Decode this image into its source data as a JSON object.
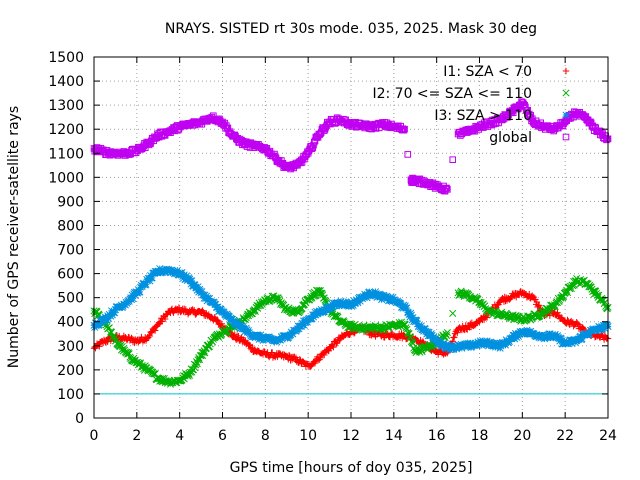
{
  "chart_data": {
    "type": "scatter",
    "title": "NRAYS. SISTED rt 30s mode. 035, 2025. Mask 30 deg",
    "xlabel": "GPS time [hours of doy 035, 2025]",
    "ylabel": "Number of GPS receiver-satellite rays",
    "xlim": [
      0,
      24
    ],
    "ylim": [
      0,
      1500
    ],
    "xticks": [
      0,
      2,
      4,
      6,
      8,
      10,
      12,
      14,
      16,
      18,
      20,
      22,
      24
    ],
    "yticks": [
      0,
      100,
      200,
      300,
      400,
      500,
      600,
      700,
      800,
      900,
      1000,
      1100,
      1200,
      1300,
      1400,
      1500
    ],
    "grid": true,
    "legend_position": "top-right",
    "threshold": {
      "y": 100,
      "color": "#00c8d8"
    },
    "series": [
      {
        "name": "I1: SZA < 70",
        "color": "#ff0000",
        "marker": "plus",
        "points": [
          [
            0,
            290
          ],
          [
            0.5,
            320
          ],
          [
            1,
            335
          ],
          [
            1.5,
            330
          ],
          [
            2,
            320
          ],
          [
            2.5,
            335
          ],
          [
            3,
            390
          ],
          [
            3.5,
            440
          ],
          [
            4,
            450
          ],
          [
            4.5,
            440
          ],
          [
            5,
            440
          ],
          [
            5.5,
            420
          ],
          [
            6,
            380
          ],
          [
            6.5,
            340
          ],
          [
            7,
            320
          ],
          [
            7.5,
            280
          ],
          [
            8,
            265
          ],
          [
            8.5,
            260
          ],
          [
            9,
            255
          ],
          [
            9.5,
            240
          ],
          [
            10,
            215
          ],
          [
            10.5,
            250
          ],
          [
            11,
            290
          ],
          [
            11.5,
            330
          ],
          [
            12,
            360
          ],
          [
            12.5,
            370
          ],
          [
            13,
            350
          ],
          [
            13.5,
            345
          ],
          [
            14,
            345
          ],
          [
            14.5,
            340
          ],
          [
            15,
            330
          ],
          [
            15.5,
            300
          ],
          [
            16,
            275
          ],
          [
            16.5,
            270
          ],
          [
            17,
            370
          ],
          [
            17.5,
            380
          ],
          [
            18,
            400
          ],
          [
            18.5,
            440
          ],
          [
            19,
            490
          ],
          [
            19.5,
            505
          ],
          [
            20,
            520
          ],
          [
            20.5,
            500
          ],
          [
            21,
            430
          ],
          [
            21.5,
            440
          ],
          [
            22,
            400
          ],
          [
            22.5,
            390
          ],
          [
            23,
            350
          ],
          [
            23.5,
            340
          ],
          [
            24,
            330
          ]
        ]
      },
      {
        "name": "I2: 70 <= SZA <= 110",
        "color": "#00b000",
        "marker": "cross",
        "points": [
          [
            0,
            445
          ],
          [
            0.5,
            400
          ],
          [
            1,
            320
          ],
          [
            1.5,
            270
          ],
          [
            2,
            230
          ],
          [
            2.5,
            200
          ],
          [
            3,
            165
          ],
          [
            3.5,
            150
          ],
          [
            4,
            155
          ],
          [
            4.5,
            190
          ],
          [
            5,
            260
          ],
          [
            5.5,
            320
          ],
          [
            6,
            360
          ],
          [
            6.5,
            380
          ],
          [
            7,
            410
          ],
          [
            7.5,
            450
          ],
          [
            8,
            490
          ],
          [
            8.5,
            500
          ],
          [
            9,
            450
          ],
          [
            9.5,
            440
          ],
          [
            10,
            495
          ],
          [
            10.5,
            530
          ],
          [
            11,
            450
          ],
          [
            11.5,
            400
          ],
          [
            12,
            380
          ],
          [
            12.5,
            375
          ],
          [
            13,
            375
          ],
          [
            13.5,
            375
          ],
          [
            14,
            385
          ],
          [
            14.5,
            390
          ],
          [
            15,
            280
          ],
          [
            15.5,
            290
          ],
          [
            16,
            310
          ],
          [
            16.5,
            355
          ],
          [
            17,
            520
          ],
          [
            17.5,
            510
          ],
          [
            18,
            480
          ],
          [
            18.5,
            440
          ],
          [
            19,
            430
          ],
          [
            19.5,
            420
          ],
          [
            20,
            410
          ],
          [
            20.5,
            420
          ],
          [
            21,
            440
          ],
          [
            21.5,
            470
          ],
          [
            22,
            520
          ],
          [
            22.5,
            570
          ],
          [
            23,
            560
          ],
          [
            23.5,
            510
          ],
          [
            24,
            460
          ]
        ]
      },
      {
        "name": "I3: SZA > 110",
        "color": "#0090e0",
        "marker": "star",
        "points": [
          [
            0,
            385
          ],
          [
            0.5,
            410
          ],
          [
            1,
            450
          ],
          [
            1.5,
            480
          ],
          [
            2,
            520
          ],
          [
            2.5,
            570
          ],
          [
            3,
            610
          ],
          [
            3.5,
            615
          ],
          [
            4,
            600
          ],
          [
            4.5,
            570
          ],
          [
            5,
            520
          ],
          [
            5.5,
            480
          ],
          [
            6,
            440
          ],
          [
            6.5,
            400
          ],
          [
            7,
            370
          ],
          [
            7.5,
            340
          ],
          [
            8,
            330
          ],
          [
            8.5,
            320
          ],
          [
            9,
            340
          ],
          [
            9.5,
            370
          ],
          [
            10,
            410
          ],
          [
            10.5,
            440
          ],
          [
            11,
            460
          ],
          [
            11.5,
            480
          ],
          [
            12,
            470
          ],
          [
            12.5,
            500
          ],
          [
            13,
            520
          ],
          [
            13.5,
            500
          ],
          [
            14,
            490
          ],
          [
            14.5,
            460
          ],
          [
            15,
            400
          ],
          [
            15.5,
            360
          ],
          [
            16,
            320
          ],
          [
            16.5,
            295
          ],
          [
            17,
            295
          ],
          [
            17.5,
            300
          ],
          [
            18,
            310
          ],
          [
            18.5,
            310
          ],
          [
            19,
            300
          ],
          [
            19.5,
            330
          ],
          [
            20,
            360
          ],
          [
            20.5,
            350
          ],
          [
            21,
            340
          ],
          [
            21.5,
            340
          ],
          [
            22,
            310
          ],
          [
            22.5,
            320
          ],
          [
            23,
            350
          ],
          [
            23.5,
            370
          ],
          [
            24,
            380
          ]
        ]
      },
      {
        "name": "global",
        "color": "#c000f0",
        "marker": "square",
        "points": [
          [
            0,
            1120
          ],
          [
            0.5,
            1105
          ],
          [
            1,
            1100
          ],
          [
            1.5,
            1100
          ],
          [
            2,
            1110
          ],
          [
            2.5,
            1140
          ],
          [
            3,
            1175
          ],
          [
            3.5,
            1190
          ],
          [
            4,
            1210
          ],
          [
            4.5,
            1220
          ],
          [
            5,
            1230
          ],
          [
            5.5,
            1250
          ],
          [
            6,
            1230
          ],
          [
            6.5,
            1170
          ],
          [
            7,
            1140
          ],
          [
            7.5,
            1130
          ],
          [
            8,
            1120
          ],
          [
            8.5,
            1080
          ],
          [
            9,
            1040
          ],
          [
            9.5,
            1050
          ],
          [
            10,
            1100
          ],
          [
            10.5,
            1180
          ],
          [
            11,
            1230
          ],
          [
            11.5,
            1240
          ],
          [
            12,
            1220
          ],
          [
            12.5,
            1215
          ],
          [
            13,
            1210
          ],
          [
            13.5,
            1220
          ],
          [
            14,
            1210
          ],
          [
            14.5,
            1200
          ],
          [
            14.8,
            990
          ],
          [
            15,
            985
          ],
          [
            15.5,
            980
          ],
          [
            16,
            960
          ],
          [
            16.5,
            950
          ],
          [
            17,
            1180
          ],
          [
            17.5,
            1190
          ],
          [
            18,
            1210
          ],
          [
            18.5,
            1225
          ],
          [
            19,
            1240
          ],
          [
            19.5,
            1270
          ],
          [
            20,
            1310
          ],
          [
            20.5,
            1230
          ],
          [
            21,
            1210
          ],
          [
            21.5,
            1200
          ],
          [
            22,
            1230
          ],
          [
            22.5,
            1270
          ],
          [
            23,
            1240
          ],
          [
            23.5,
            1190
          ],
          [
            24,
            1160
          ]
        ]
      }
    ]
  }
}
